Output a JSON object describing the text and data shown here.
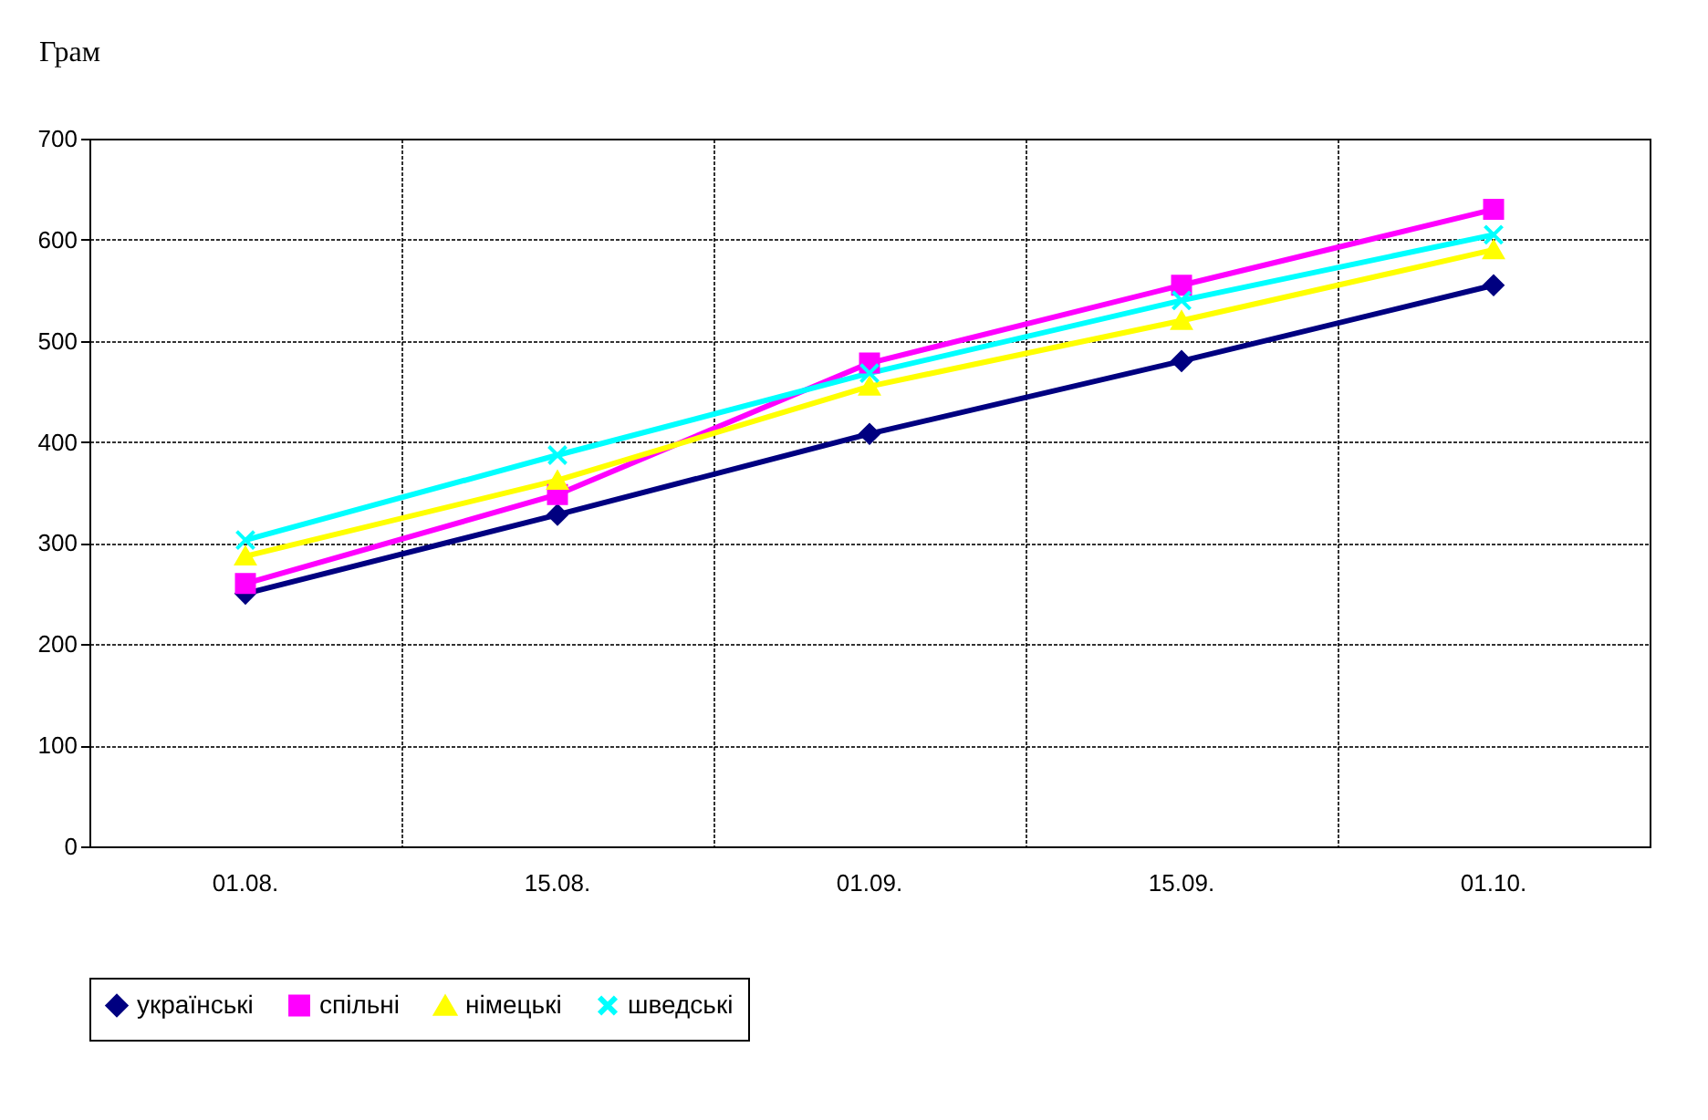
{
  "chart_data": {
    "type": "line",
    "ylabel": "Грам",
    "categories": [
      "01.08.",
      "15.08.",
      "01.09.",
      "15.09.",
      "01.10."
    ],
    "series": [
      {
        "name": "українські",
        "color": "#000080",
        "marker": "diamond",
        "values": [
          250,
          328,
          408,
          480,
          555
        ]
      },
      {
        "name": "спільні",
        "color": "#ff00ff",
        "marker": "square",
        "values": [
          260,
          348,
          478,
          555,
          630
        ]
      },
      {
        "name": "німецькі",
        "color": "#ffff00",
        "marker": "triangle",
        "values": [
          287,
          362,
          455,
          520,
          590
        ]
      },
      {
        "name": "шведські",
        "color": "#00ffff",
        "marker": "cross",
        "values": [
          303,
          387,
          468,
          540,
          605
        ]
      }
    ],
    "ylim": [
      0,
      700
    ],
    "yticks": [
      0,
      100,
      200,
      300,
      400,
      500,
      600,
      700
    ],
    "grid": true,
    "legend": "bottom"
  }
}
